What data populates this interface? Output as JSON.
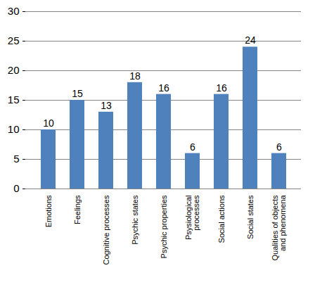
{
  "chart_data": {
    "type": "bar",
    "categories": [
      "Emotions",
      "Feelings",
      "Cognitive processes",
      "Psychic states",
      "Psychic properties",
      "Psysiological processes",
      "Social actions",
      "Social states",
      "Qualities of objects and phenomena"
    ],
    "values": [
      10,
      15,
      13,
      18,
      16,
      6,
      16,
      24,
      6
    ],
    "color": "#4f81bd",
    "ylim": [
      0,
      30
    ],
    "yticks": [
      0,
      5,
      10,
      15,
      20,
      25,
      30
    ],
    "grid": true,
    "data_labels": true
  }
}
